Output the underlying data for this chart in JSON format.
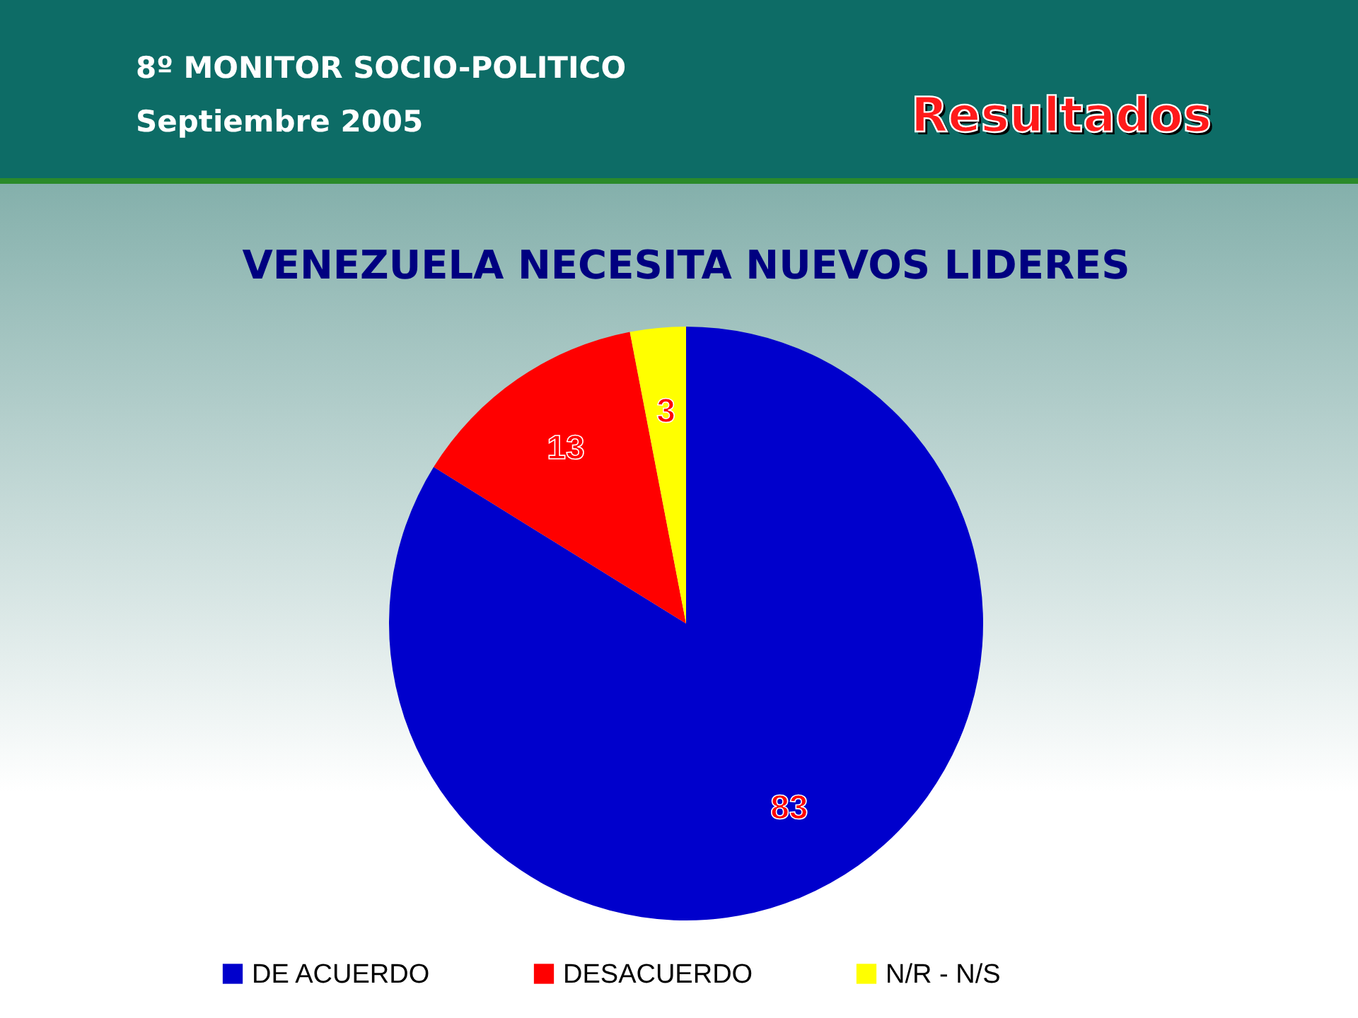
{
  "chart_data": {
    "type": "pie",
    "title": "VENEZUELA NECESITA NUEVOS LIDERES",
    "annotations": [
      "8º MONITOR SOCIO-POLITICO",
      "Septiembre 2005",
      "Resultados"
    ],
    "categories": [
      "DE ACUERDO",
      "DESACUERDO",
      "N/R - N/S"
    ],
    "values": [
      83,
      13,
      3
    ],
    "colors": [
      "#0000cc",
      "#ff0000",
      "#ffff00"
    ],
    "data_labels": true,
    "legend": "bottom"
  }
}
